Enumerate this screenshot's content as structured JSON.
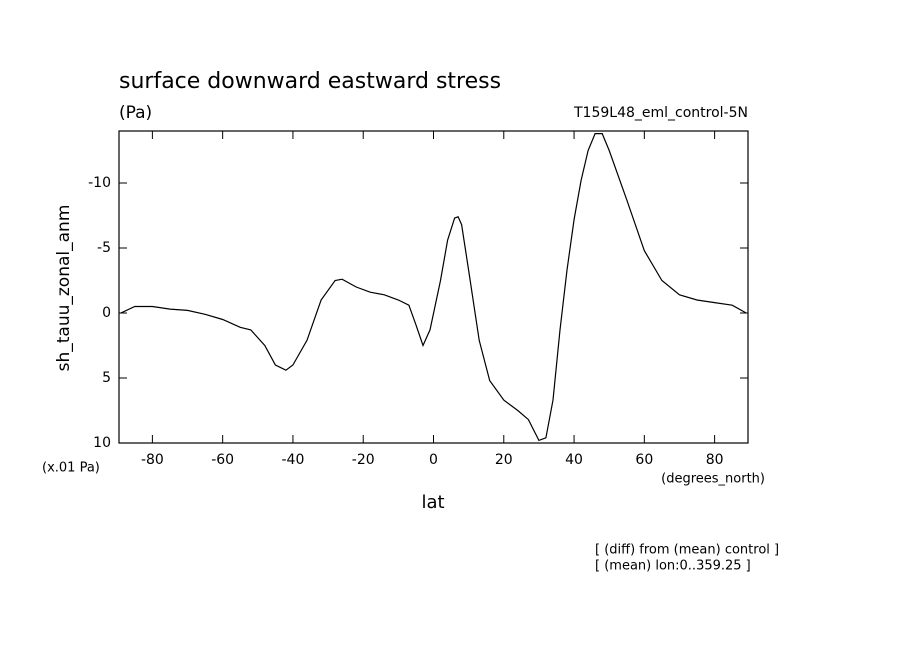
{
  "chart_data": {
    "type": "line",
    "title": "surface downward eastward stress",
    "subtitle": "(Pa)",
    "run_label": "T159L48_eml_control-5N",
    "y_label": "sh_tauu_zonal_anm",
    "y_units": "(x.01 Pa)",
    "x_label": "lat",
    "x_units": "(degrees_north)",
    "notes": [
      "[ (diff) from (mean) control ]",
      "[ (mean) lon:0..359.25 ]"
    ],
    "xlim": [
      -89.5,
      89.5
    ],
    "ylim": [
      10,
      -14
    ],
    "xticks": [
      -80,
      -60,
      -40,
      -20,
      0,
      20,
      40,
      60,
      80
    ],
    "yticks": [
      10,
      5,
      0,
      -5,
      -10
    ],
    "color": "#000000",
    "x": [
      -89,
      -85,
      -80,
      -75,
      -70,
      -65,
      -60,
      -55,
      -52,
      -48,
      -45,
      -42,
      -40,
      -36,
      -32,
      -28,
      -26,
      -22,
      -18,
      -14,
      -10,
      -7,
      -5,
      -3,
      -1,
      2,
      4,
      6,
      7,
      8,
      10,
      13,
      16,
      20,
      24,
      27,
      30,
      32,
      34,
      36,
      38,
      40,
      42,
      44,
      46,
      48,
      50,
      55,
      60,
      65,
      70,
      75,
      80,
      85,
      89
    ],
    "values": [
      0,
      -0.5,
      -0.5,
      -0.3,
      -0.2,
      0.1,
      0.5,
      1.1,
      1.3,
      2.5,
      4.0,
      4.4,
      4.0,
      2.1,
      -1.0,
      -2.5,
      -2.6,
      -2.0,
      -1.6,
      -1.4,
      -1.0,
      -0.6,
      0.9,
      2.5,
      1.3,
      -2.5,
      -5.6,
      -7.3,
      -7.4,
      -6.8,
      -3.3,
      2.1,
      5.2,
      6.7,
      7.5,
      8.2,
      9.8,
      9.6,
      6.7,
      1.3,
      -3.3,
      -7.2,
      -10.2,
      -12.5,
      -13.8,
      -13.8,
      -12.5,
      -8.7,
      -4.8,
      -2.5,
      -1.4,
      -1.0,
      -0.8,
      -0.6,
      0
    ]
  }
}
